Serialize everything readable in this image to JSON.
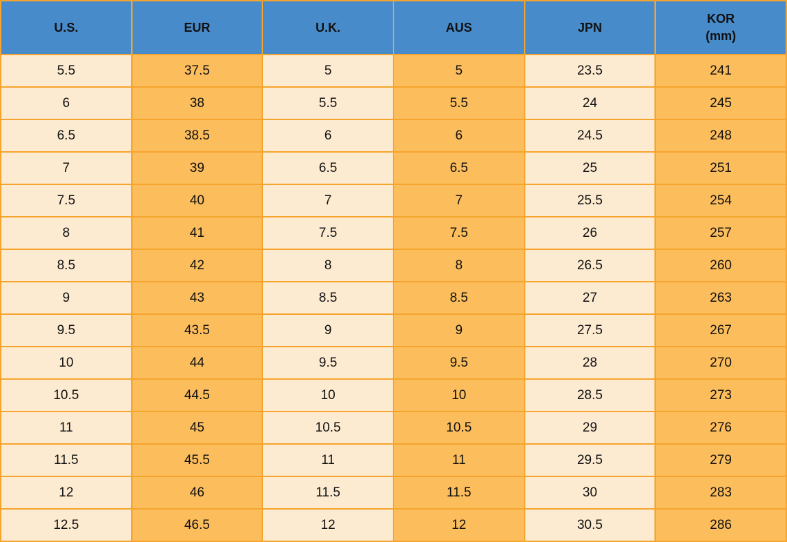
{
  "colors": {
    "header_bg": "#488bcb",
    "row_cream": "#fdebd1",
    "row_orange": "#fcbd5c",
    "border": "#f5a42d",
    "text": "#111111"
  },
  "table": {
    "columns": [
      {
        "label": "U.S."
      },
      {
        "label": "EUR"
      },
      {
        "label": "U.K."
      },
      {
        "label": "AUS"
      },
      {
        "label": "JPN"
      },
      {
        "label": "KOR",
        "label_line2": "(mm)"
      }
    ]
  },
  "chart_data": {
    "type": "table",
    "columns": [
      "U.S.",
      "EUR",
      "U.K.",
      "AUS",
      "JPN",
      "KOR (mm)"
    ],
    "rows": [
      [
        "5.5",
        "37.5",
        "5",
        "5",
        "23.5",
        "241"
      ],
      [
        "6",
        "38",
        "5.5",
        "5.5",
        "24",
        "245"
      ],
      [
        "6.5",
        "38.5",
        "6",
        "6",
        "24.5",
        "248"
      ],
      [
        "7",
        "39",
        "6.5",
        "6.5",
        "25",
        "251"
      ],
      [
        "7.5",
        "40",
        "7",
        "7",
        "25.5",
        "254"
      ],
      [
        "8",
        "41",
        "7.5",
        "7.5",
        "26",
        "257"
      ],
      [
        "8.5",
        "42",
        "8",
        "8",
        "26.5",
        "260"
      ],
      [
        "9",
        "43",
        "8.5",
        "8.5",
        "27",
        "263"
      ],
      [
        "9.5",
        "43.5",
        "9",
        "9",
        "27.5",
        "267"
      ],
      [
        "10",
        "44",
        "9.5",
        "9.5",
        "28",
        "270"
      ],
      [
        "10.5",
        "44.5",
        "10",
        "10",
        "28.5",
        "273"
      ],
      [
        "11",
        "45",
        "10.5",
        "10.5",
        "29",
        "276"
      ],
      [
        "11.5",
        "45.5",
        "11",
        "11",
        "29.5",
        "279"
      ],
      [
        "12",
        "46",
        "11.5",
        "11.5",
        "30",
        "283"
      ],
      [
        "12.5",
        "46.5",
        "12",
        "12",
        "30.5",
        "286"
      ]
    ],
    "column_fill_pattern": [
      "cream",
      "orange",
      "cream",
      "orange",
      "cream",
      "orange"
    ],
    "grid": true,
    "legend": false
  }
}
